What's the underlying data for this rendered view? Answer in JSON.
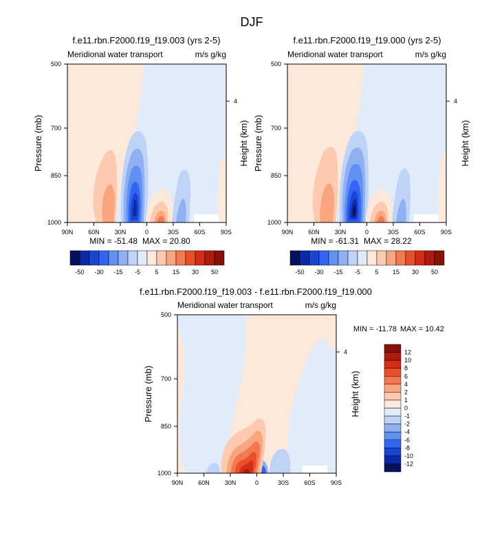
{
  "figure": {
    "title": "DJF"
  },
  "chart_data": [
    {
      "type": "heatmap",
      "title": "f.e11.rbn.F2000.f19_f19.003 (yrs 2-5)",
      "left_string": "Meridional water transport",
      "right_string": "m/s g/kg",
      "ylabel": "Pressure (mb)",
      "right_ylabel": "Height (km)",
      "xticks": [
        "90N",
        "60N",
        "30N",
        "0",
        "30S",
        "60S",
        "90S"
      ],
      "yticks": [
        "500",
        "700",
        "850",
        "1000"
      ],
      "right_yticks": [
        "4"
      ],
      "min_label": "MIN = -51.48",
      "max_label": "MAX = 20.80",
      "colorbar": {
        "orientation": "horizontal",
        "colors": [
          "#08115e",
          "#0a2aa6",
          "#1945d4",
          "#3366f0",
          "#6090f0",
          "#8fb0f2",
          "#bfd3f6",
          "#e1ecfb",
          "#fde9db",
          "#fccaae",
          "#f9a57f",
          "#f27a52",
          "#ea4e2b",
          "#d42c17",
          "#b01a0f",
          "#871008"
        ],
        "labels": [
          "-50",
          "-30",
          "-15",
          "-5",
          "5",
          "15",
          "30",
          "50"
        ]
      }
    },
    {
      "type": "heatmap",
      "title": "f.e11.rbn.F2000.f19_f19.000 (yrs 2-5)",
      "left_string": "Meridional water transport",
      "right_string": "m/s g/kg",
      "ylabel": "Pressure (mb)",
      "right_ylabel": "Height (km)",
      "xticks": [
        "90N",
        "60N",
        "30N",
        "0",
        "30S",
        "60S",
        "90S"
      ],
      "yticks": [
        "500",
        "700",
        "850",
        "1000"
      ],
      "right_yticks": [
        "4"
      ],
      "min_label": "MIN = -61.31",
      "max_label": "MAX = 28.22",
      "colorbar": {
        "orientation": "horizontal",
        "colors": [
          "#08115e",
          "#0a2aa6",
          "#1945d4",
          "#3366f0",
          "#6090f0",
          "#8fb0f2",
          "#bfd3f6",
          "#e1ecfb",
          "#fde9db",
          "#fccaae",
          "#f9a57f",
          "#f27a52",
          "#ea4e2b",
          "#d42c17",
          "#b01a0f",
          "#871008"
        ],
        "labels": [
          "-50",
          "-30",
          "-15",
          "-5",
          "5",
          "15",
          "30",
          "50"
        ]
      }
    },
    {
      "type": "heatmap",
      "title": "f.e11.rbn.F2000.f19_f19.003 - f.e11.rbn.F2000.f19_f19.000",
      "left_string": "Meridional water transport",
      "right_string": "m/s g/kg",
      "ylabel": "Pressure (mb)",
      "right_ylabel": "Height (km)",
      "xticks": [
        "90N",
        "60N",
        "30N",
        "0",
        "30S",
        "60S",
        "90S"
      ],
      "yticks": [
        "500",
        "700",
        "850",
        "1000"
      ],
      "right_yticks": [
        "4"
      ],
      "min_label": "MIN = -11.78",
      "max_label": "MAX = 10.42",
      "colorbar": {
        "orientation": "vertical",
        "colors": [
          "#871008",
          "#b01a0f",
          "#d42c17",
          "#ea4e2b",
          "#f27a52",
          "#f9a57f",
          "#fccaae",
          "#fde9db",
          "#e1ecfb",
          "#bfd3f6",
          "#8fb0f2",
          "#6090f0",
          "#3366f0",
          "#1945d4",
          "#0a2aa6",
          "#08115e"
        ],
        "labels": [
          "12",
          "10",
          "8",
          "6",
          "4",
          "2",
          "1",
          "0",
          "-1",
          "-2",
          "-4",
          "-6",
          "-8",
          "-10",
          "-12"
        ]
      }
    }
  ]
}
